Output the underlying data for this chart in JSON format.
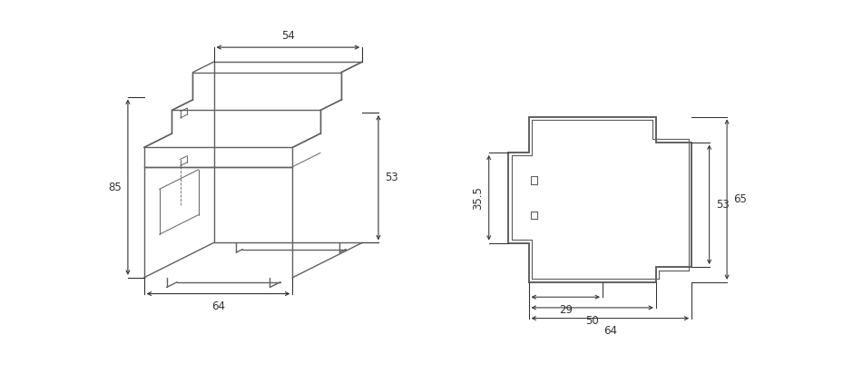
{
  "bg_color": "#ffffff",
  "line_color": "#606060",
  "dim_color": "#333333",
  "fig_width": 9.4,
  "fig_height": 4.23,
  "dpi": 100,
  "iso_labels": [
    "54",
    "85",
    "64",
    "53"
  ],
  "side_labels": [
    "35.5",
    "53",
    "65",
    "29",
    "50",
    "64"
  ]
}
